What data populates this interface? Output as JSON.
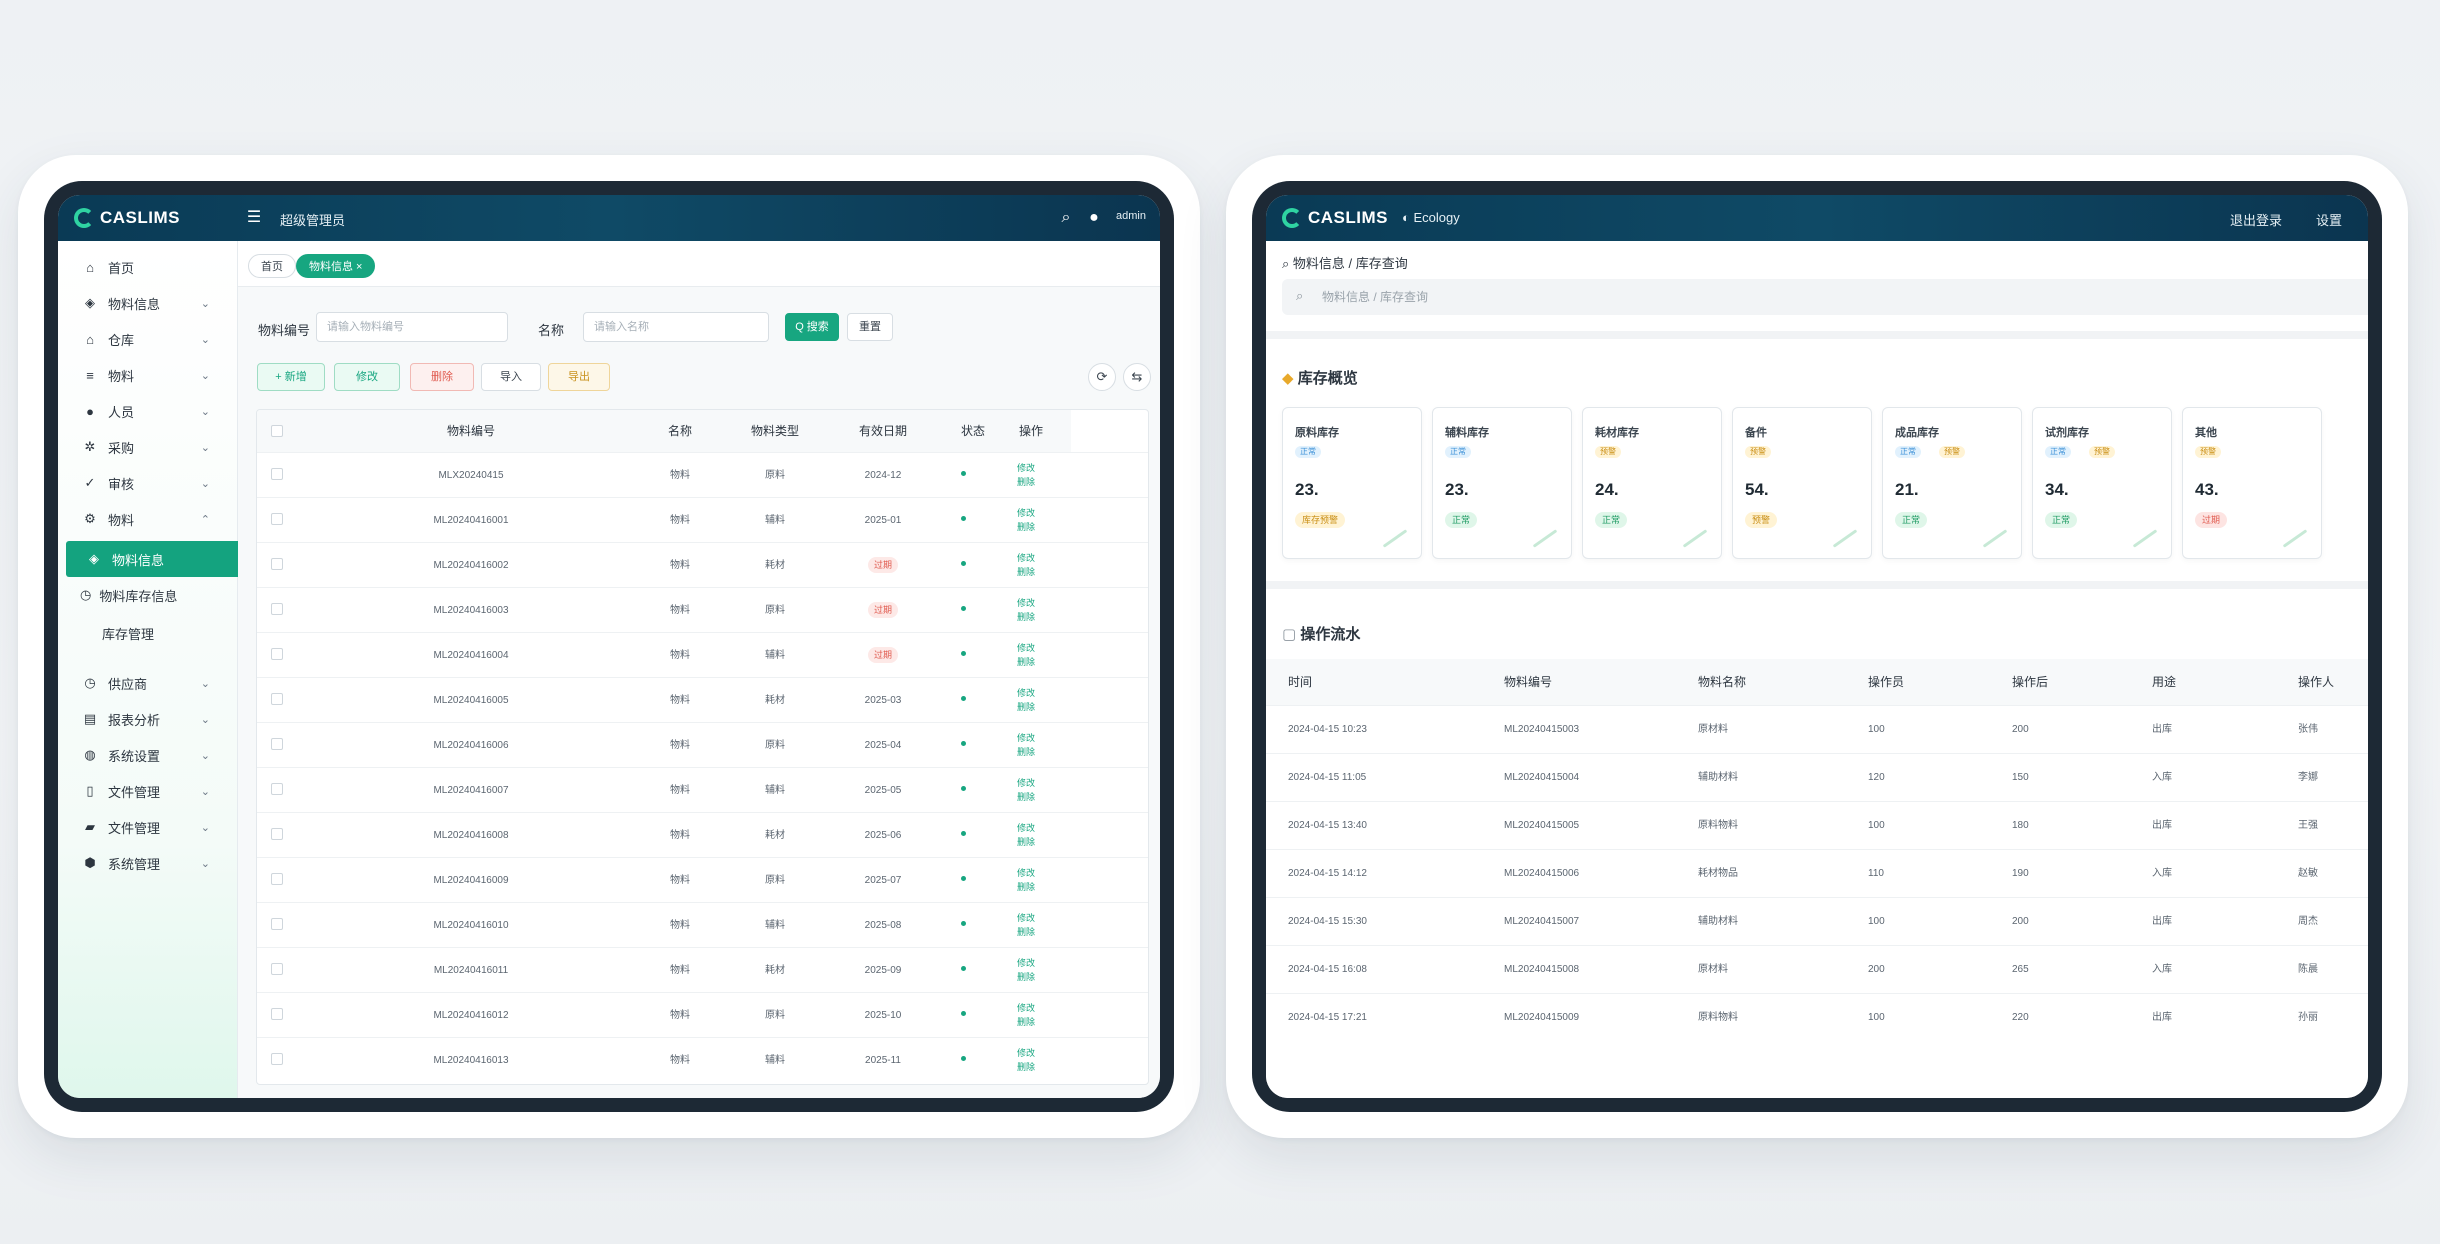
{
  "left_app": {
    "brand": "CASLIMS",
    "header_title": "超级管理员",
    "header_user": "admin",
    "sidebar": {
      "items": [
        {
          "label": "首页",
          "icon": "home-icon",
          "chev": ""
        },
        {
          "label": "物料信息",
          "icon": "box-icon",
          "chev": "⌄"
        },
        {
          "label": "仓库",
          "icon": "warehouse-icon",
          "chev": "⌄"
        },
        {
          "label": "物料",
          "icon": "list-icon",
          "chev": "⌄"
        },
        {
          "label": "人员",
          "icon": "user-icon",
          "chev": "⌄"
        },
        {
          "label": "采购",
          "icon": "settings-icon",
          "chev": "⌄"
        },
        {
          "label": "审核",
          "icon": "check-icon",
          "chev": "⌄"
        },
        {
          "label": "物料",
          "icon": "gear-icon",
          "chev": "⌃"
        }
      ],
      "active_item": "物料信息",
      "sub_items": [
        "物料库存信息",
        "库存管理"
      ],
      "lower_items": [
        {
          "label": "供应商",
          "icon": "clock-icon",
          "chev": "⌄"
        },
        {
          "label": "报表分析",
          "icon": "chart-icon",
          "chev": "⌄"
        },
        {
          "label": "系统设置",
          "icon": "globe-icon",
          "chev": "⌄"
        },
        {
          "label": "文件管理",
          "icon": "file-icon",
          "chev": "⌄"
        },
        {
          "label": "文件管理",
          "icon": "folder-icon",
          "chev": "⌄"
        },
        {
          "label": "系统管理",
          "icon": "shield-icon",
          "chev": "⌄"
        }
      ]
    },
    "tabs": [
      {
        "label": "首页",
        "active": false
      },
      {
        "label": "物料信息 ×",
        "active": true
      }
    ],
    "search": {
      "code_label": "物料编号",
      "code_placeholder": "请输入物料编号",
      "name_label": "名称",
      "name_placeholder": "请输入名称",
      "search_button": "Q 搜索",
      "reset_button": "重置"
    },
    "toolbar": {
      "add": "+ 新增",
      "edit": "修改",
      "delete": "删除",
      "import": "导入",
      "export": "导出",
      "refresh_icon": "⟳",
      "columns_icon": "⇆"
    },
    "table": {
      "headers": [
        "物料编号",
        "名称",
        "物料类型",
        "有效日期",
        "状态",
        "操作"
      ],
      "rows": [
        {
          "code": "MLX20240415",
          "name": "物料",
          "type": "原料",
          "date": "2024-12",
          "status": "",
          "status_tag": false,
          "ops": [
            "修改",
            "删除"
          ]
        },
        {
          "code": "ML20240416001",
          "name": "物料",
          "type": "辅料",
          "date": "2025-01",
          "status": "",
          "status_tag": false,
          "ops": [
            "修改",
            "删除"
          ]
        },
        {
          "code": "ML20240416002",
          "name": "物料",
          "type": "耗材",
          "date": "过期",
          "status": "",
          "status_tag": true,
          "ops": [
            "修改",
            "删除"
          ]
        },
        {
          "code": "ML20240416003",
          "name": "物料",
          "type": "原料",
          "date": "过期",
          "status": "",
          "status_tag": true,
          "ops": [
            "修改",
            "删除"
          ]
        },
        {
          "code": "ML20240416004",
          "name": "物料",
          "type": "辅料",
          "date": "过期",
          "status": "",
          "status_tag": true,
          "ops": [
            "修改",
            "删除"
          ]
        },
        {
          "code": "ML20240416005",
          "name": "物料",
          "type": "耗材",
          "date": "2025-03",
          "status": "",
          "status_tag": false,
          "ops": [
            "修改",
            "删除"
          ]
        },
        {
          "code": "ML20240416006",
          "name": "物料",
          "type": "原料",
          "date": "2025-04",
          "status": "",
          "status_tag": false,
          "ops": [
            "修改",
            "删除"
          ]
        },
        {
          "code": "ML20240416007",
          "name": "物料",
          "type": "辅料",
          "date": "2025-05",
          "status": "",
          "status_tag": false,
          "ops": [
            "修改",
            "删除"
          ]
        },
        {
          "code": "ML20240416008",
          "name": "物料",
          "type": "耗材",
          "date": "2025-06",
          "status": "",
          "status_tag": false,
          "ops": [
            "修改",
            "删除"
          ]
        },
        {
          "code": "ML20240416009",
          "name": "物料",
          "type": "原料",
          "date": "2025-07",
          "status": "",
          "status_tag": false,
          "ops": [
            "修改",
            "删除"
          ]
        },
        {
          "code": "ML20240416010",
          "name": "物料",
          "type": "辅料",
          "date": "2025-08",
          "status": "",
          "status_tag": false,
          "ops": [
            "修改",
            "删除"
          ]
        },
        {
          "code": "ML20240416011",
          "name": "物料",
          "type": "耗材",
          "date": "2025-09",
          "status": "",
          "status_tag": false,
          "ops": [
            "修改",
            "删除"
          ]
        },
        {
          "code": "ML20240416012",
          "name": "物料",
          "type": "原料",
          "date": "2025-10",
          "status": "",
          "status_tag": false,
          "ops": [
            "修改",
            "删除"
          ]
        },
        {
          "code": "ML20240416013",
          "name": "物料",
          "type": "辅料",
          "date": "2025-11",
          "status": "",
          "status_tag": false,
          "ops": [
            "修改",
            "删除"
          ]
        }
      ]
    }
  },
  "right_app": {
    "brand": "CASLIMS",
    "header_app": "Ecology",
    "header_links": [
      "退出登录",
      "设置"
    ],
    "search_title": "物料信息 / 库存查询",
    "search_placeholder": "物料信息 / 库存查询",
    "overview_title": "库存概览",
    "cards": [
      {
        "title": "原料库存",
        "value": "23.",
        "badge": "库存预警",
        "badge_color": "yellow",
        "chips": [
          {
            "text": "正常",
            "color": "blue"
          }
        ]
      },
      {
        "title": "辅料库存",
        "value": "23.",
        "badge": "正常",
        "badge_color": "green",
        "chips": [
          {
            "text": "正常",
            "color": "blue"
          }
        ]
      },
      {
        "title": "耗材库存",
        "value": "24.",
        "badge": "正常",
        "badge_color": "green",
        "chips": [
          {
            "text": "预警",
            "color": "yellow"
          }
        ]
      },
      {
        "title": "备件",
        "value": "54.",
        "badge": "预警",
        "badge_color": "yellow",
        "chips": [
          {
            "text": "预警",
            "color": "yellow"
          }
        ]
      },
      {
        "title": "成品库存",
        "value": "21.",
        "badge": "正常",
        "badge_color": "green",
        "chips": [
          {
            "text": "正常",
            "color": "blue"
          },
          {
            "text": "预警",
            "color": "yellow"
          }
        ]
      },
      {
        "title": "试剂库存",
        "value": "34.",
        "badge": "正常",
        "badge_color": "green",
        "chips": [
          {
            "text": "正常",
            "color": "blue"
          },
          {
            "text": "预警",
            "color": "yellow"
          }
        ]
      },
      {
        "title": "其他",
        "value": "43.",
        "badge": "过期",
        "badge_color": "red",
        "chips": [
          {
            "text": "预警",
            "color": "yellow"
          }
        ]
      }
    ],
    "log_title": "操作流水",
    "log": {
      "headers": [
        "时间",
        "物料编号",
        "物料名称",
        "操作员",
        "操作后",
        "用途",
        "操作人"
      ],
      "rows": [
        [
          "2024-04-15 10:23",
          "ML20240415003",
          "原材料",
          "100",
          "200",
          "出库",
          "张伟"
        ],
        [
          "2024-04-15 11:05",
          "ML20240415004",
          "辅助材料",
          "120",
          "150",
          "入库",
          "李娜"
        ],
        [
          "2024-04-15 13:40",
          "ML20240415005",
          "原料物料",
          "100",
          "180",
          "出库",
          "王强"
        ],
        [
          "2024-04-15 14:12",
          "ML20240415006",
          "耗材物品",
          "110",
          "190",
          "入库",
          "赵敏"
        ],
        [
          "2024-04-15 15:30",
          "ML20240415007",
          "辅助材料",
          "100",
          "200",
          "出库",
          "周杰"
        ],
        [
          "2024-04-15 16:08",
          "ML20240415008",
          "原材料",
          "200",
          "265",
          "入库",
          "陈晨"
        ],
        [
          "2024-04-15 17:21",
          "ML20240415009",
          "原料物料",
          "100",
          "220",
          "出库",
          "孙丽"
        ]
      ]
    }
  },
  "colors": {
    "accent": "#17a680",
    "header": "#0f4a66",
    "bezel": "#1d2935"
  }
}
